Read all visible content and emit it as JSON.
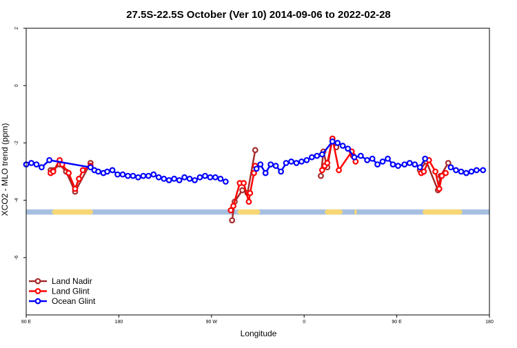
{
  "chart_data": {
    "type": "line",
    "title": "27.5S-22.5S October (Ver 10)   2014-09-06 to 2022-02-28",
    "xlabel": "Longitude",
    "ylabel": "XCO2 - MLO trend (ppm)",
    "xlim": [
      90,
      450
    ],
    "ylim": [
      -8,
      2
    ],
    "x_ticks": [
      {
        "value": 90,
        "label": "90 E"
      },
      {
        "value": 162,
        "label": "180"
      },
      {
        "value": 234,
        "label": "90 W"
      },
      {
        "value": 306,
        "label": "0"
      },
      {
        "value": 378,
        "label": "90 E"
      },
      {
        "value": 450,
        "label": "180"
      }
    ],
    "y_ticks": [
      {
        "value": 2,
        "label": "2"
      },
      {
        "value": 0,
        "label": "0"
      },
      {
        "value": -2,
        "label": "-2"
      },
      {
        "value": -4,
        "label": "-4"
      },
      {
        "value": -6,
        "label": "-6"
      }
    ],
    "legend": {
      "position": "bottom-left"
    },
    "series": [
      {
        "name": "Land Nadir",
        "color": "#a52a2a",
        "segments": [
          [
            [
              109,
              -2.95
            ],
            [
              111,
              -2.95
            ],
            [
              116,
              -2.75
            ],
            [
              121,
              -3.0
            ],
            [
              128,
              -3.7
            ],
            [
              140,
              -2.7
            ]
          ],
          [
            [
              250,
              -4.7
            ],
            [
              252,
              -4.05
            ],
            [
              258,
              -3.65
            ],
            [
              262,
              -3.75
            ],
            [
              268,
              -2.25
            ]
          ],
          [
            [
              319,
              -3.15
            ],
            [
              321,
              -2.3
            ],
            [
              324,
              -2.85
            ],
            [
              328,
              -1.85
            ],
            [
              331,
              -2.15
            ]
          ],
          [
            [
              396,
              -2.95
            ],
            [
              401,
              -2.65
            ],
            [
              410,
              -3.65
            ],
            [
              412,
              -3.15
            ],
            [
              418,
              -2.7
            ]
          ]
        ]
      },
      {
        "name": "Land Glint",
        "color": "#ff0000",
        "segments": [
          [
            [
              109,
              -3.05
            ],
            [
              111,
              -3.0
            ],
            [
              116,
              -2.6
            ],
            [
              118,
              -2.75
            ],
            [
              123,
              -3.05
            ],
            [
              128,
              -3.6
            ],
            [
              131,
              -3.25
            ],
            [
              134,
              -2.95
            ],
            [
              140,
              -2.8
            ]
          ],
          [
            [
              249,
              -4.35
            ],
            [
              251,
              -4.2
            ],
            [
              256,
              -3.4
            ],
            [
              259,
              -3.4
            ],
            [
              263,
              -4.05
            ],
            [
              264,
              -3.75
            ],
            [
              267,
              -3.05
            ],
            [
              268,
              -2.8
            ]
          ],
          [
            [
              320,
              -2.95
            ],
            [
              322,
              -2.8
            ],
            [
              324,
              -2.7
            ],
            [
              328,
              -1.85
            ],
            [
              333,
              -2.95
            ],
            [
              343,
              -2.3
            ],
            [
              344,
              -2.45
            ],
            [
              346,
              -2.65
            ]
          ],
          [
            [
              397,
              -3.05
            ],
            [
              399,
              -3.0
            ],
            [
              403,
              -2.6
            ],
            [
              408,
              -3.0
            ],
            [
              411,
              -3.6
            ],
            [
              413,
              -3.15
            ],
            [
              416,
              -3.05
            ]
          ]
        ]
      },
      {
        "name": "Ocean Glint",
        "color": "#0000ff",
        "segments": [
          [
            [
              90,
              -2.75
            ],
            [
              94,
              -2.7
            ],
            [
              98,
              -2.75
            ],
            [
              102,
              -2.85
            ],
            [
              108,
              -2.6
            ],
            [
              140,
              -2.85
            ],
            [
              143,
              -2.95
            ],
            [
              146,
              -3.0
            ],
            [
              150,
              -3.05
            ],
            [
              153,
              -3.0
            ],
            [
              157,
              -2.95
            ],
            [
              161,
              -3.1
            ],
            [
              165,
              -3.1
            ],
            [
              169,
              -3.15
            ],
            [
              173,
              -3.15
            ],
            [
              177,
              -3.2
            ],
            [
              181,
              -3.15
            ],
            [
              185,
              -3.15
            ],
            [
              189,
              -3.1
            ],
            [
              193,
              -3.2
            ],
            [
              197,
              -3.25
            ],
            [
              201,
              -3.3
            ],
            [
              205,
              -3.25
            ],
            [
              209,
              -3.3
            ],
            [
              213,
              -3.2
            ],
            [
              217,
              -3.25
            ],
            [
              221,
              -3.3
            ],
            [
              225,
              -3.2
            ],
            [
              229,
              -3.15
            ],
            [
              233,
              -3.2
            ],
            [
              237,
              -3.2
            ],
            [
              241,
              -3.25
            ],
            [
              245,
              -3.35
            ]
          ],
          [
            [
              269,
              -2.9
            ],
            [
              272,
              -2.75
            ],
            [
              276,
              -3.05
            ],
            [
              280,
              -2.75
            ],
            [
              284,
              -2.8
            ],
            [
              288,
              -3.0
            ],
            [
              292,
              -2.7
            ],
            [
              296,
              -2.65
            ],
            [
              300,
              -2.7
            ],
            [
              304,
              -2.65
            ],
            [
              308,
              -2.6
            ],
            [
              312,
              -2.5
            ],
            [
              316,
              -2.45
            ],
            [
              320,
              -2.4
            ],
            [
              328,
              -1.95
            ],
            [
              332,
              -2.0
            ],
            [
              336,
              -2.1
            ],
            [
              340,
              -2.2
            ],
            [
              345,
              -2.5
            ],
            [
              350,
              -2.45
            ],
            [
              355,
              -2.6
            ],
            [
              359,
              -2.55
            ],
            [
              363,
              -2.75
            ],
            [
              367,
              -2.65
            ],
            [
              371,
              -2.55
            ],
            [
              375,
              -2.75
            ],
            [
              379,
              -2.8
            ],
            [
              384,
              -2.75
            ],
            [
              388,
              -2.7
            ],
            [
              392,
              -2.75
            ],
            [
              396,
              -2.85
            ],
            [
              400,
              -2.55
            ]
          ],
          [
            [
              420,
              -2.85
            ],
            [
              424,
              -2.95
            ],
            [
              428,
              -3.0
            ],
            [
              432,
              -3.05
            ],
            [
              436,
              -3.0
            ],
            [
              440,
              -2.95
            ],
            [
              445,
              -2.95
            ]
          ]
        ]
      }
    ],
    "land_bands": [
      [
        110,
        142
      ],
      [
        254,
        272
      ],
      [
        322,
        336
      ],
      [
        345,
        347
      ],
      [
        398,
        429
      ]
    ],
    "band_colors": {
      "ocean": "#a6bfe0",
      "land": "#f7d774"
    }
  }
}
